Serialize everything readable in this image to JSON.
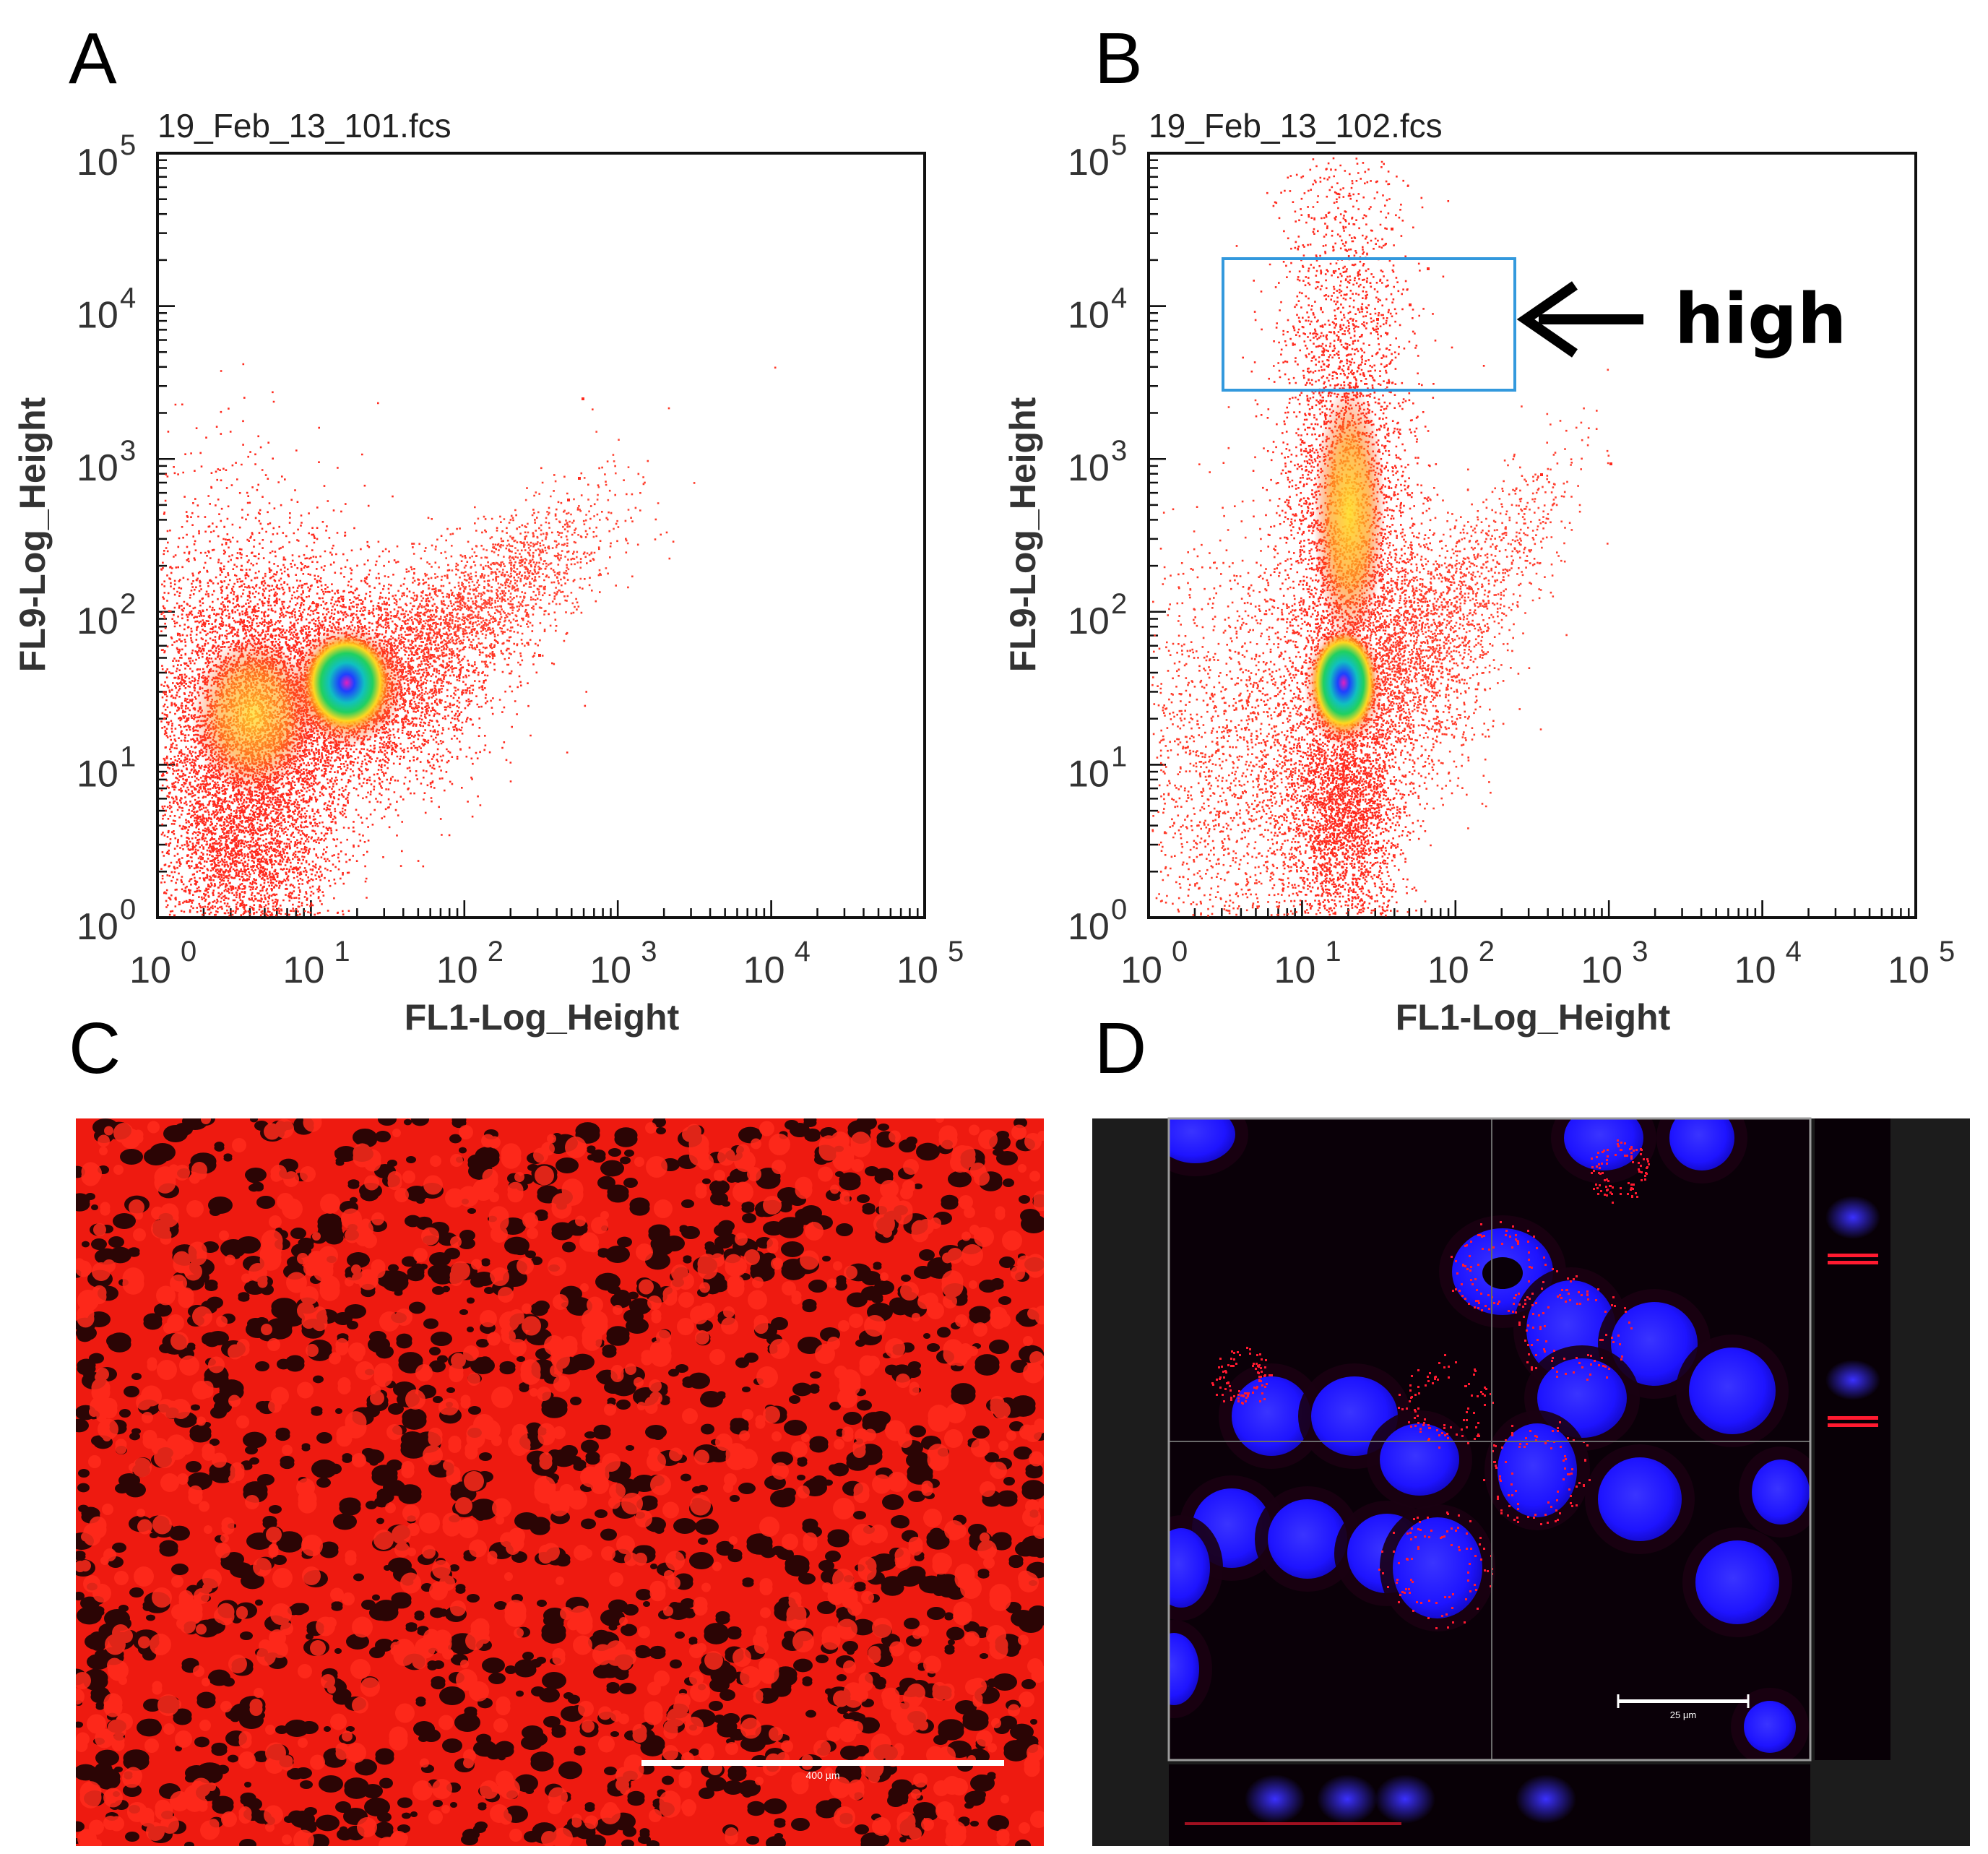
{
  "figure": {
    "panel_letters": [
      "A",
      "B",
      "C",
      "D"
    ],
    "colors": {
      "dot_low": "#ff2020",
      "density_yellow": "#ffd820",
      "density_green": "#20d060",
      "density_blue": "#1040ff",
      "density_magenta": "#e020c0",
      "gate": "#3399dd",
      "micro_red": "#ff1a12",
      "nucleus_blue": "#1e14ff"
    }
  },
  "panel_a": {
    "file_title": "19_Feb_13_101.fcs",
    "xlabel": "FL1-Log_Height",
    "ylabel": "FL9-Log_Height",
    "tick_base": "10",
    "tick_exponents": [
      "0",
      "1",
      "2",
      "3",
      "4",
      "5"
    ]
  },
  "panel_b": {
    "file_title": "19_Feb_13_102.fcs",
    "xlabel": "FL1-Log_Height",
    "ylabel": "FL9-Log_Height",
    "tick_base": "10",
    "tick_exponents": [
      "0",
      "1",
      "2",
      "3",
      "4",
      "5"
    ],
    "gate_label": "high"
  },
  "panel_c": {
    "scale_bar_label": "400 µm"
  },
  "panel_d": {
    "scale_bar_label": "25 µm"
  }
}
